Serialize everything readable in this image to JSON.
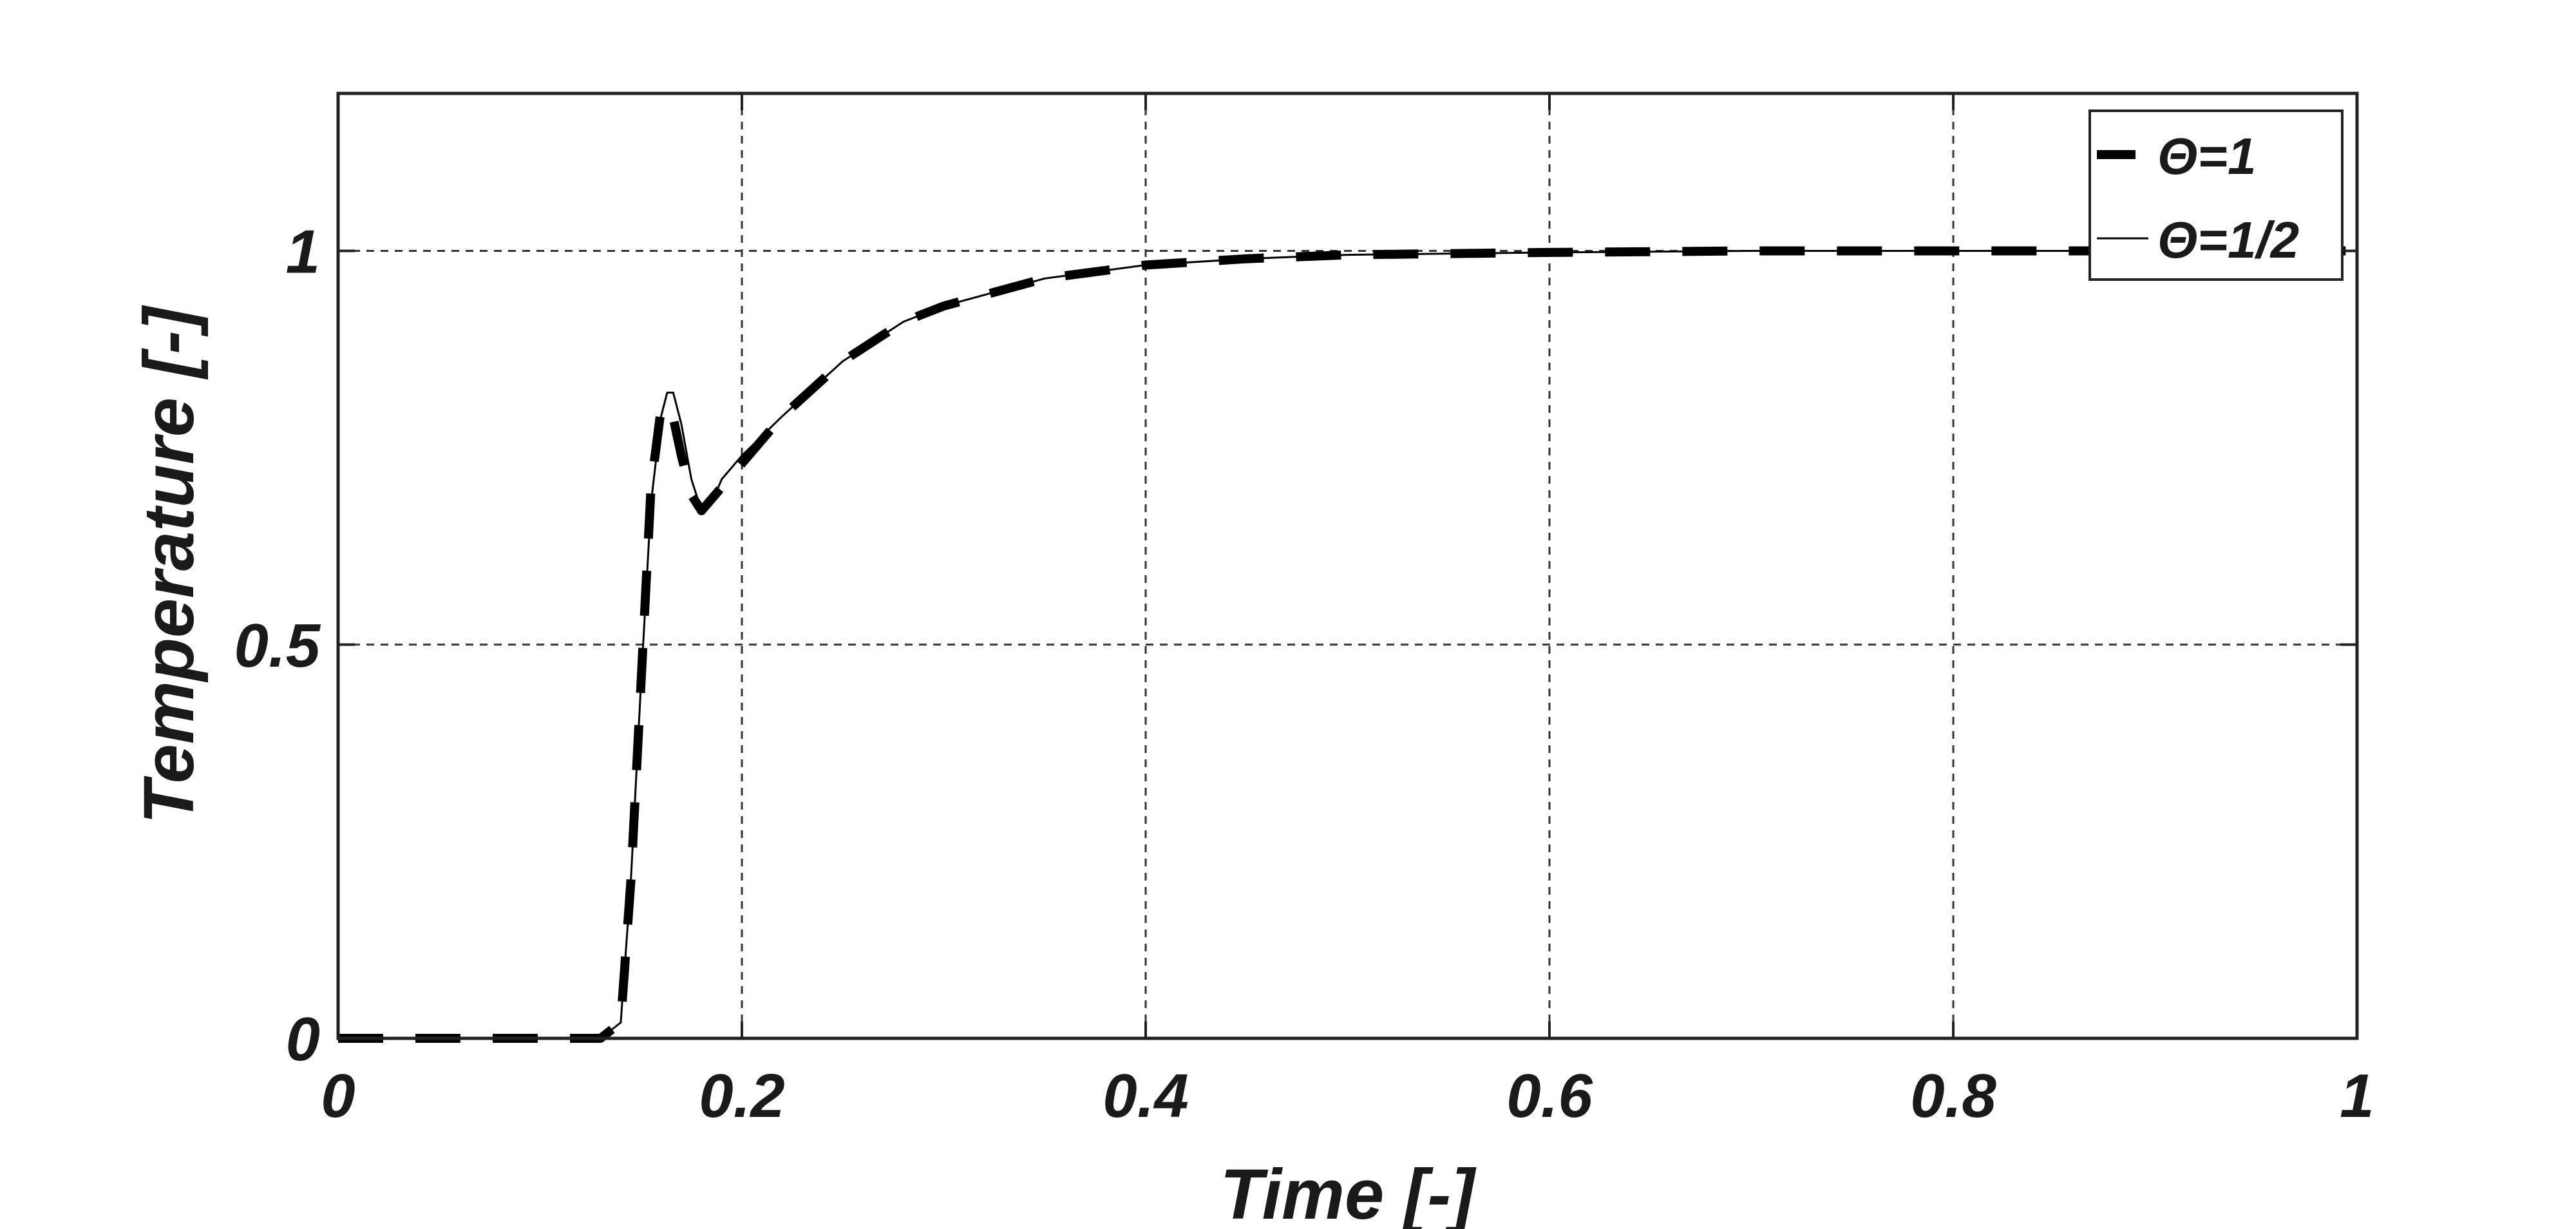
{
  "chart_data": {
    "type": "line",
    "title": "",
    "xlabel": "Time [-]",
    "ylabel": "Temperature [-]",
    "xlim": [
      0,
      1
    ],
    "ylim": [
      0,
      1.2
    ],
    "xticks": [
      0,
      0.2,
      0.4,
      0.6,
      0.8,
      1
    ],
    "xtick_labels": [
      "0",
      "0.2",
      "0.4",
      "0.6",
      "0.8",
      "1"
    ],
    "yticks": [
      0,
      0.5,
      1
    ],
    "ytick_labels": [
      "0",
      "0.5",
      "1"
    ],
    "grid": true,
    "legend_position": "top-right",
    "series": [
      {
        "name": "Θ=1",
        "style": "dashed-thick",
        "color": "#000000",
        "x": [
          0,
          0.13,
          0.14,
          0.145,
          0.15,
          0.155,
          0.16,
          0.165,
          0.17,
          0.175,
          0.18,
          0.19,
          0.2,
          0.22,
          0.25,
          0.28,
          0.3,
          0.35,
          0.4,
          0.45,
          0.5,
          0.6,
          0.7,
          0.8,
          0.9,
          1.0
        ],
        "y": [
          0,
          0,
          0.02,
          0.2,
          0.45,
          0.7,
          0.8,
          0.8,
          0.74,
          0.69,
          0.67,
          0.7,
          0.73,
          0.79,
          0.86,
          0.91,
          0.93,
          0.965,
          0.982,
          0.99,
          0.995,
          0.998,
          1.0,
          1.0,
          1.0,
          1.0
        ]
      },
      {
        "name": "Θ=1/2",
        "style": "solid-thin",
        "color": "#000000",
        "x": [
          0,
          0.13,
          0.14,
          0.145,
          0.15,
          0.155,
          0.16,
          0.163,
          0.166,
          0.17,
          0.175,
          0.18,
          0.185,
          0.19,
          0.2,
          0.22,
          0.25,
          0.28,
          0.3,
          0.35,
          0.4,
          0.45,
          0.5,
          0.6,
          0.7,
          0.8,
          0.9,
          1.0
        ],
        "y": [
          0,
          0,
          0.02,
          0.2,
          0.45,
          0.68,
          0.79,
          0.82,
          0.82,
          0.78,
          0.71,
          0.67,
          0.68,
          0.71,
          0.74,
          0.79,
          0.86,
          0.91,
          0.93,
          0.965,
          0.982,
          0.99,
          0.995,
          0.998,
          1.0,
          1.0,
          1.0,
          1.0
        ]
      }
    ]
  }
}
